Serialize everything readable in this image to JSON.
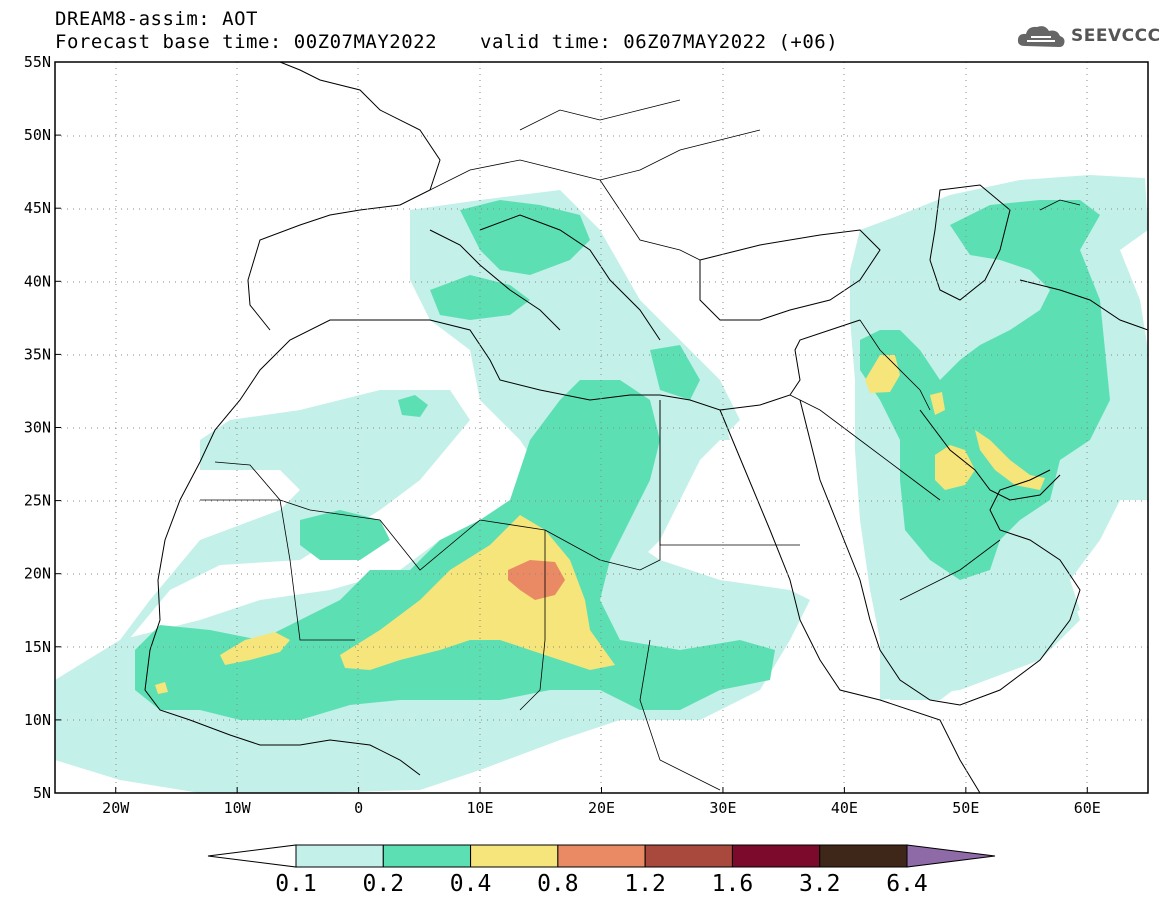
{
  "header": {
    "title": "DREAM8-assim: AOT",
    "base_time": "Forecast base time: 00Z07MAY2022",
    "valid_time": "valid time: 06Z07MAY2022 (+06)"
  },
  "logo": {
    "text": "SEEVCCC",
    "icon": "cloud-icon"
  },
  "map": {
    "lon_range": [
      -25,
      65
    ],
    "lat_range": [
      5,
      55
    ],
    "lat_labels": [
      "55N",
      "50N",
      "45N",
      "40N",
      "35N",
      "30N",
      "25N",
      "20N",
      "15N",
      "10N",
      "5N"
    ],
    "lon_labels": [
      "20W",
      "10W",
      "0",
      "10E",
      "20E",
      "30E",
      "40E",
      "50E",
      "60E"
    ],
    "grid": "dotted"
  },
  "colorbar": {
    "labels": [
      "0.1",
      "0.2",
      "0.4",
      "0.8",
      "1.2",
      "1.6",
      "3.2",
      "6.4"
    ],
    "colors": [
      "#ffffff",
      "#c3f0e8",
      "#5ddfb4",
      "#f5e57a",
      "#ea8a65",
      "#a9493e",
      "#7b0a2c",
      "#3e2619",
      "#8e6aa6"
    ]
  }
}
